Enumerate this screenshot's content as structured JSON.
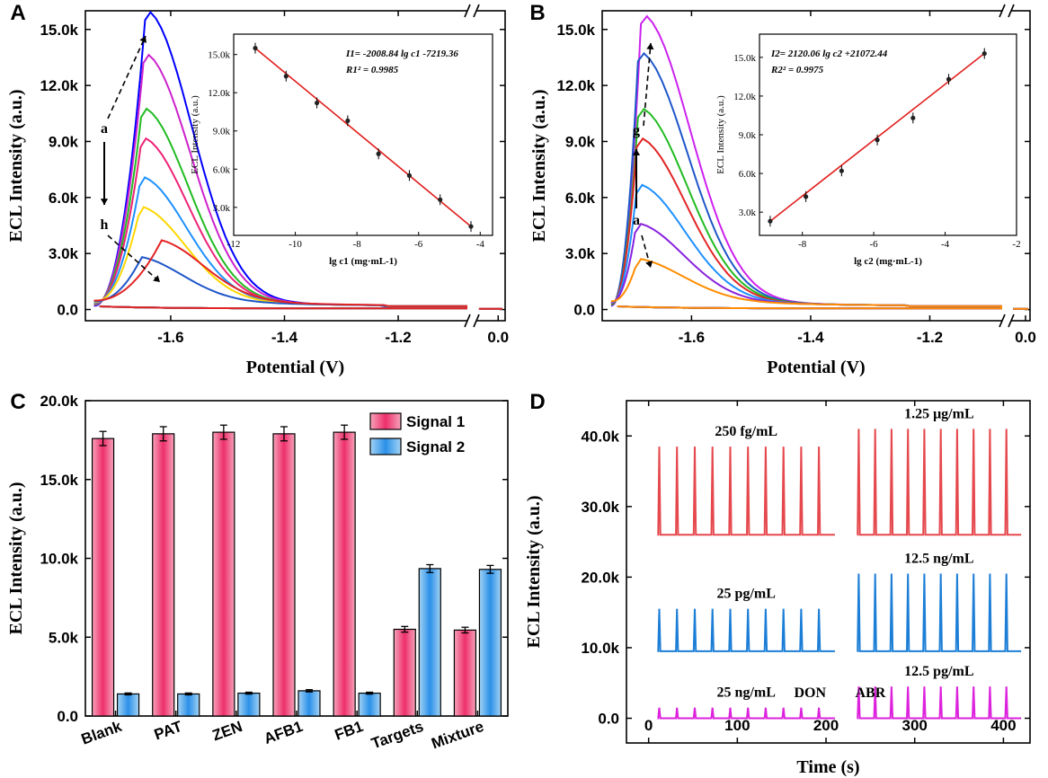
{
  "chart_data": [
    {
      "panel": "A",
      "type": "line",
      "xlabel": "Potential (V)",
      "ylabel": "ECL Intensity (a.u.)",
      "xticks": [
        "-1.6",
        "-1.4",
        "-1.2",
        "0.0"
      ],
      "yticks": [
        "0.0",
        "3.0k",
        "6.0k",
        "9.0k",
        "12.0k",
        "15.0k"
      ],
      "ylim": [
        -600,
        16000
      ],
      "axis_break": "x between -1.08 and 0.0",
      "annotations": [
        "a",
        "h"
      ],
      "series": [
        {
          "color": "#0000ff",
          "peak_x": -1.645,
          "peak": 15500
        },
        {
          "color": "#cc22cc",
          "peak_x": -1.648,
          "peak": 13200
        },
        {
          "color": "#22bb22",
          "peak_x": -1.652,
          "peak": 10300
        },
        {
          "color": "#ee2277",
          "peak_x": -1.653,
          "peak": 8700
        },
        {
          "color": "#1e90ff",
          "peak_x": -1.655,
          "peak": 6600
        },
        {
          "color": "#ffd700",
          "peak_x": -1.657,
          "peak": 5000
        },
        {
          "color": "#1e56c8",
          "peak_x": -1.66,
          "peak": 2300
        },
        {
          "color": "#e22525",
          "peak_x": -1.625,
          "peak": 3200
        }
      ],
      "inset": {
        "type": "scatter",
        "xlabel": "lg c1 (mg·mL-1)",
        "ylabel": "ECL Intensity (a.u.)",
        "xticks": [
          "-12",
          "-10",
          "-8",
          "-6",
          "-4"
        ],
        "yticks": [
          "3.0k",
          "6.0k",
          "9.0k",
          "12.0k",
          "15.0k"
        ],
        "xlim": [
          -12,
          -3.6
        ],
        "ylim": [
          800,
          16600
        ],
        "equation": "I1= -2008.84 lg c1 -7219.36",
        "r2": "R1² = 0.9985",
        "points": [
          {
            "x": -11.3,
            "y": 15500
          },
          {
            "x": -10.3,
            "y": 13300
          },
          {
            "x": -9.3,
            "y": 11200
          },
          {
            "x": -8.3,
            "y": 9800
          },
          {
            "x": -7.3,
            "y": 7200
          },
          {
            "x": -6.3,
            "y": 5500
          },
          {
            "x": -5.3,
            "y": 3600
          },
          {
            "x": -4.3,
            "y": 1500
          }
        ]
      }
    },
    {
      "panel": "B",
      "type": "line",
      "xlabel": "Potential (V)",
      "ylabel": "ECL Intensity (a.u.)",
      "xticks": [
        "-1.6",
        "-1.4",
        "-1.2",
        "0.0"
      ],
      "yticks": [
        "0.0",
        "3.0k",
        "6.0k",
        "9.0k",
        "12.0k",
        "15.0k"
      ],
      "ylim": [
        -600,
        16000
      ],
      "axis_break": "x between -1.08 and 0.0",
      "annotations": [
        "g",
        "a"
      ],
      "series": [
        {
          "color": "#cc22ee",
          "peak_x": -1.685,
          "peak": 15300
        },
        {
          "color": "#1e56c8",
          "peak_x": -1.69,
          "peak": 13300
        },
        {
          "color": "#22bb22",
          "peak_x": -1.69,
          "peak": 10300
        },
        {
          "color": "#e22525",
          "peak_x": -1.692,
          "peak": 8700
        },
        {
          "color": "#1e90ff",
          "peak_x": -1.693,
          "peak": 6200
        },
        {
          "color": "#8822dd",
          "peak_x": -1.695,
          "peak": 4100
        },
        {
          "color": "#ff8c00",
          "peak_x": -1.695,
          "peak": 2200
        }
      ],
      "inset": {
        "type": "scatter",
        "xlabel": "lg c2 (mg·mL-1)",
        "ylabel": "ECL Intensity (a.u.)",
        "xticks": [
          "-8",
          "-6",
          "-4",
          "-2"
        ],
        "yticks": [
          "3.0k",
          "6.0k",
          "9.0k",
          "12.0k",
          "15.0k"
        ],
        "xlim": [
          -9.2,
          -2
        ],
        "ylim": [
          1200,
          16800
        ],
        "equation": "I2= 2120.06 lg c2 +21072.44",
        "r2": "R2² = 0.9975",
        "points": [
          {
            "x": -8.9,
            "y": 2300
          },
          {
            "x": -7.9,
            "y": 4200
          },
          {
            "x": -6.9,
            "y": 6200
          },
          {
            "x": -5.9,
            "y": 8600
          },
          {
            "x": -4.9,
            "y": 10300
          },
          {
            "x": -3.9,
            "y": 13300
          },
          {
            "x": -2.9,
            "y": 15300
          }
        ]
      }
    },
    {
      "panel": "C",
      "type": "bar",
      "ylabel": "ECL Intensity (a.u.)",
      "yticks": [
        "0.0",
        "5.0k",
        "10.0k",
        "15.0k",
        "20.0k"
      ],
      "ylim": [
        0,
        20000
      ],
      "categories": [
        "Blank",
        "PAT",
        "ZEN",
        "AFB1",
        "FB1",
        "Targets",
        "Mixture"
      ],
      "legend_position": "top-right",
      "series": [
        {
          "name": "Signal 1",
          "color": "#ee3a6f",
          "values": [
            17600,
            17900,
            18000,
            17900,
            18000,
            5500,
            5450
          ],
          "errors": [
            450,
            450,
            450,
            450,
            450,
            180,
            180
          ]
        },
        {
          "name": "Signal 2",
          "color": "#3aa0ee",
          "values": [
            1400,
            1400,
            1450,
            1600,
            1450,
            9350,
            9300
          ],
          "errors": [
            60,
            60,
            60,
            70,
            60,
            250,
            250
          ]
        }
      ]
    },
    {
      "panel": "D",
      "type": "line",
      "xlabel": "Time (s)",
      "ylabel": "ECL Intensity (a.u.)",
      "xticks": [
        "0",
        "100",
        "200",
        "300",
        "400"
      ],
      "yticks": [
        "0.0",
        "10.0k",
        "20.0k",
        "30.0k",
        "40.0k"
      ],
      "xlim": [
        -25,
        430
      ],
      "ylim": [
        -3500,
        45000
      ],
      "traces": [
        {
          "label": "250 fg/mL",
          "color": "#e5484d",
          "t_start": 10,
          "t_end": 210,
          "baseline": 26000,
          "peak": 38500,
          "pulses": 10
        },
        {
          "label": "1.25 μg/mL",
          "color": "#e5484d",
          "t_start": 235,
          "t_end": 420,
          "baseline": 26000,
          "peak": 41000,
          "pulses": 10
        },
        {
          "label": "25 pg/mL",
          "color": "#1c7ed6",
          "t_start": 10,
          "t_end": 210,
          "baseline": 9500,
          "peak": 15500,
          "pulses": 10
        },
        {
          "label": "12.5 ng/mL",
          "color": "#1c7ed6",
          "t_start": 235,
          "t_end": 420,
          "baseline": 9500,
          "peak": 20500,
          "pulses": 10
        },
        {
          "label": "25 ng/mL",
          "color": "#dd22dd",
          "t_start": 10,
          "t_end": 210,
          "baseline": 0,
          "peak": 1500,
          "pulses": 10
        },
        {
          "label": "12.5 pg/mL",
          "color": "#dd22dd",
          "t_start": 235,
          "t_end": 420,
          "baseline": 0,
          "peak": 4500,
          "pulses": 10
        }
      ],
      "region_labels": [
        {
          "text": "DON",
          "color": "#f05a5a",
          "t": 182
        },
        {
          "text": "ABR",
          "color": "#f05a5a",
          "t": 250
        }
      ]
    }
  ]
}
